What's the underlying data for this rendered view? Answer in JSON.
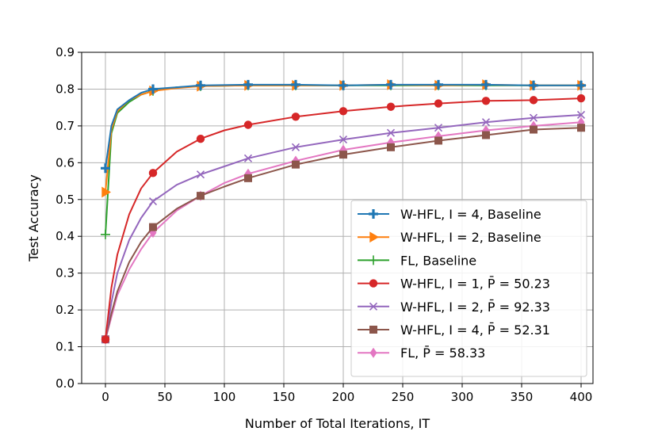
{
  "chart_data": {
    "type": "line",
    "xlabel": "Number of Total Iterations, IT",
    "ylabel": "Test Accuracy",
    "xlim": [
      -20,
      410
    ],
    "ylim": [
      0.0,
      0.9
    ],
    "xticks": [
      0,
      50,
      100,
      150,
      200,
      250,
      300,
      350,
      400
    ],
    "yticks": [
      0.0,
      0.1,
      0.2,
      0.3,
      0.4,
      0.5,
      0.6,
      0.7,
      0.8,
      0.9
    ],
    "xtick_labels": [
      "0",
      "50",
      "100",
      "150",
      "200",
      "250",
      "300",
      "350",
      "400"
    ],
    "ytick_labels": [
      "0.0",
      "0.1",
      "0.2",
      "0.3",
      "0.4",
      "0.5",
      "0.6",
      "0.7",
      "0.8",
      "0.9"
    ],
    "grid": true,
    "legend_position": "lower-right",
    "series": [
      {
        "legend_label": "W-HFL, I = 4, Baseline",
        "color": "#1f77b4",
        "marker": "plus",
        "x": [
          0,
          5,
          10,
          20,
          30,
          40,
          60,
          80,
          120,
          160,
          200,
          240,
          280,
          320,
          360,
          400
        ],
        "y": [
          0.585,
          0.7,
          0.745,
          0.77,
          0.79,
          0.8,
          0.805,
          0.81,
          0.812,
          0.812,
          0.81,
          0.812,
          0.812,
          0.812,
          0.81,
          0.81
        ]
      },
      {
        "legend_label": "W-HFL, I = 2, Baseline",
        "color": "#ff7f0e",
        "marker": "triangle-right",
        "x": [
          0,
          5,
          10,
          20,
          30,
          40,
          60,
          80,
          120,
          160,
          200,
          240,
          280,
          320,
          360,
          400
        ],
        "y": [
          0.52,
          0.69,
          0.74,
          0.77,
          0.785,
          0.795,
          0.803,
          0.808,
          0.81,
          0.81,
          0.81,
          0.812,
          0.81,
          0.812,
          0.81,
          0.81
        ]
      },
      {
        "legend_label": "FL, Baseline",
        "color": "#2ca02c",
        "marker": "plus-thin",
        "x": [
          0,
          5,
          10,
          20,
          30,
          40,
          60,
          80,
          120,
          160,
          200,
          240,
          280,
          320,
          360,
          400
        ],
        "y": [
          0.405,
          0.68,
          0.735,
          0.765,
          0.785,
          0.795,
          0.805,
          0.808,
          0.81,
          0.81,
          0.81,
          0.81,
          0.81,
          0.81,
          0.81,
          0.81
        ]
      },
      {
        "legend_label": "W-HFL, I = 1, P̄ = 50.23",
        "color": "#d62728",
        "marker": "circle",
        "x": [
          0,
          5,
          10,
          20,
          30,
          40,
          60,
          80,
          100,
          120,
          160,
          200,
          240,
          280,
          320,
          360,
          400
        ],
        "y": [
          0.12,
          0.26,
          0.35,
          0.46,
          0.53,
          0.572,
          0.63,
          0.665,
          0.688,
          0.703,
          0.725,
          0.74,
          0.752,
          0.761,
          0.768,
          0.77,
          0.775
        ]
      },
      {
        "legend_label": "W-HFL, I = 2, P̄ = 92.33",
        "color": "#9467bd",
        "marker": "x",
        "x": [
          0,
          5,
          10,
          20,
          30,
          40,
          60,
          80,
          100,
          120,
          160,
          200,
          240,
          280,
          320,
          360,
          400
        ],
        "y": [
          0.12,
          0.22,
          0.3,
          0.39,
          0.45,
          0.495,
          0.54,
          0.568,
          0.59,
          0.612,
          0.642,
          0.663,
          0.681,
          0.695,
          0.71,
          0.722,
          0.73
        ]
      },
      {
        "legend_label": "W-HFL, I = 4, P̄ = 52.31",
        "color": "#8c564b",
        "marker": "square",
        "x": [
          0,
          5,
          10,
          20,
          30,
          40,
          60,
          80,
          100,
          120,
          160,
          200,
          240,
          280,
          320,
          360,
          400
        ],
        "y": [
          0.12,
          0.19,
          0.25,
          0.33,
          0.385,
          0.425,
          0.475,
          0.51,
          0.535,
          0.558,
          0.595,
          0.622,
          0.642,
          0.66,
          0.675,
          0.69,
          0.695
        ]
      },
      {
        "legend_label": "FL, P̄ = 58.33",
        "color": "#e377c2",
        "marker": "diamond",
        "x": [
          0,
          5,
          10,
          20,
          30,
          40,
          60,
          80,
          100,
          120,
          160,
          200,
          240,
          280,
          320,
          360,
          400
        ],
        "y": [
          0.12,
          0.18,
          0.24,
          0.31,
          0.365,
          0.41,
          0.47,
          0.51,
          0.545,
          0.57,
          0.605,
          0.635,
          0.655,
          0.672,
          0.688,
          0.7,
          0.71
        ]
      }
    ]
  }
}
